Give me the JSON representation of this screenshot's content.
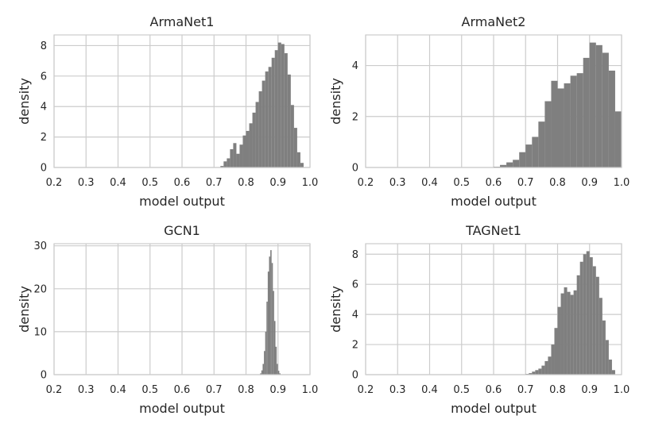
{
  "colors": {
    "bar": "#7f7f7f",
    "grid": "#cccccc",
    "text": "#262626",
    "background": "#ffffff"
  },
  "chart_data": [
    {
      "type": "bar",
      "title": "ArmaNet1",
      "xlabel": "model output",
      "ylabel": "density",
      "xlim": [
        0.2,
        1.0
      ],
      "ylim": [
        0,
        8.7
      ],
      "grid": true,
      "xticks": [
        0.2,
        0.3,
        0.4,
        0.5,
        0.6,
        0.7,
        0.8,
        0.9,
        1.0
      ],
      "xtick_labels": [
        "0.2",
        "0.3",
        "0.4",
        "0.5",
        "0.6",
        "0.7",
        "0.8",
        "0.9",
        "1.0"
      ],
      "yticks": [
        0,
        2,
        4,
        6,
        8
      ],
      "ytick_labels": [
        "0",
        "2",
        "4",
        "6",
        "8"
      ],
      "bin_width": 0.01,
      "bins_left": [
        0.72,
        0.73,
        0.74,
        0.75,
        0.76,
        0.77,
        0.78,
        0.79,
        0.8,
        0.81,
        0.82,
        0.83,
        0.84,
        0.85,
        0.86,
        0.87,
        0.88,
        0.89,
        0.9,
        0.91,
        0.92,
        0.93,
        0.94,
        0.95,
        0.96,
        0.97
      ],
      "values": [
        0.1,
        0.4,
        0.6,
        1.2,
        1.6,
        0.9,
        1.5,
        2.1,
        2.4,
        2.9,
        3.6,
        4.3,
        5.0,
        5.7,
        6.3,
        6.6,
        7.2,
        7.7,
        8.2,
        8.1,
        7.5,
        6.1,
        4.1,
        2.6,
        1.0,
        0.3
      ]
    },
    {
      "type": "bar",
      "title": "ArmaNet2",
      "xlabel": "model output",
      "ylabel": "density",
      "xlim": [
        0.2,
        1.0
      ],
      "ylim": [
        0,
        5.2
      ],
      "grid": true,
      "xticks": [
        0.2,
        0.3,
        0.4,
        0.5,
        0.6,
        0.7,
        0.8,
        0.9,
        1.0
      ],
      "xtick_labels": [
        "0.2",
        "0.3",
        "0.4",
        "0.5",
        "0.6",
        "0.7",
        "0.8",
        "0.9",
        "1.0"
      ],
      "yticks": [
        0,
        2,
        4
      ],
      "ytick_labels": [
        "0",
        "2",
        "4"
      ],
      "bin_width": 0.02,
      "bins_left": [
        0.6,
        0.62,
        0.64,
        0.66,
        0.68,
        0.7,
        0.72,
        0.74,
        0.76,
        0.78,
        0.8,
        0.82,
        0.84,
        0.86,
        0.88,
        0.9,
        0.92,
        0.94,
        0.96,
        0.98
      ],
      "values": [
        0.03,
        0.1,
        0.2,
        0.3,
        0.6,
        0.9,
        1.2,
        1.8,
        2.6,
        3.4,
        3.1,
        3.3,
        3.6,
        3.7,
        4.3,
        4.9,
        4.8,
        4.5,
        3.8,
        2.2
      ]
    },
    {
      "type": "bar",
      "title": "GCN1",
      "xlabel": "model output",
      "ylabel": "density",
      "xlim": [
        0.2,
        1.0
      ],
      "ylim": [
        0,
        30.5
      ],
      "grid": true,
      "xticks": [
        0.2,
        0.3,
        0.4,
        0.5,
        0.6,
        0.7,
        0.8,
        0.9,
        1.0
      ],
      "xtick_labels": [
        "0.2",
        "0.3",
        "0.4",
        "0.5",
        "0.6",
        "0.7",
        "0.8",
        "0.9",
        "1.0"
      ],
      "yticks": [
        0,
        10,
        20,
        30
      ],
      "ytick_labels": [
        "0",
        "10",
        "20",
        "30"
      ],
      "bin_width": 0.004,
      "bins_left": [
        0.844,
        0.848,
        0.852,
        0.856,
        0.86,
        0.864,
        0.868,
        0.872,
        0.876,
        0.88,
        0.884,
        0.888,
        0.892,
        0.896,
        0.9,
        0.904
      ],
      "values": [
        0.3,
        1.0,
        2.5,
        5.5,
        10.0,
        17.0,
        24.0,
        27.5,
        29.0,
        26.0,
        19.5,
        12.5,
        6.5,
        2.5,
        0.9,
        0.3
      ]
    },
    {
      "type": "bar",
      "title": "TAGNet1",
      "xlabel": "model output",
      "ylabel": "density",
      "xlim": [
        0.2,
        1.0
      ],
      "ylim": [
        0,
        8.7
      ],
      "grid": true,
      "xticks": [
        0.2,
        0.3,
        0.4,
        0.5,
        0.6,
        0.7,
        0.8,
        0.9,
        1.0
      ],
      "xtick_labels": [
        "0.2",
        "0.3",
        "0.4",
        "0.5",
        "0.6",
        "0.7",
        "0.8",
        "0.9",
        "1.0"
      ],
      "yticks": [
        0,
        2,
        4,
        6,
        8
      ],
      "ytick_labels": [
        "0",
        "2",
        "4",
        "6",
        "8"
      ],
      "bin_width": 0.01,
      "bins_left": [
        0.7,
        0.71,
        0.72,
        0.73,
        0.74,
        0.75,
        0.76,
        0.77,
        0.78,
        0.79,
        0.8,
        0.81,
        0.82,
        0.83,
        0.84,
        0.85,
        0.86,
        0.87,
        0.88,
        0.89,
        0.9,
        0.91,
        0.92,
        0.93,
        0.94,
        0.95,
        0.96,
        0.97
      ],
      "values": [
        0.05,
        0.1,
        0.2,
        0.3,
        0.4,
        0.6,
        0.9,
        1.2,
        2.0,
        3.1,
        4.5,
        5.4,
        5.8,
        5.5,
        5.3,
        5.6,
        6.6,
        7.5,
        8.0,
        8.2,
        7.8,
        7.2,
        6.5,
        5.1,
        3.6,
        2.3,
        1.0,
        0.3
      ]
    }
  ]
}
